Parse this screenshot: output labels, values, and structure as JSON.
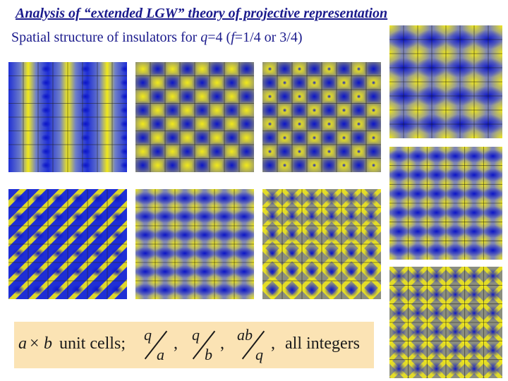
{
  "slide": {
    "title": "Analysis of “extended LGW” theory of projective representation",
    "subtitle": {
      "prefix": "Spatial structure of insulators for ",
      "q_symbol": "q",
      "q_value": "=4 (",
      "f_symbol": "f",
      "f_value": "=1/4 or 3/4)"
    }
  },
  "colors": {
    "title": "#1a1a8c",
    "pattern_low": "#1f2fd6",
    "pattern_high": "#f2ea1a",
    "grid": "#222222",
    "formula_background": "#fbe3b4"
  },
  "panels": [
    {
      "id": "stripes",
      "pattern": "vertical-stripes"
    },
    {
      "id": "checker-fine",
      "pattern": "checkerboard-fine"
    },
    {
      "id": "checker-dots",
      "pattern": "checkerboard-dots"
    },
    {
      "id": "diagonal",
      "pattern": "diagonal-stripes"
    },
    {
      "id": "plaquette",
      "pattern": "plaquette"
    },
    {
      "id": "diagonal-mesh",
      "pattern": "diagonal-mesh"
    },
    {
      "id": "right-top",
      "pattern": "large-plaquette"
    },
    {
      "id": "right-middle",
      "pattern": "plaquette-b"
    },
    {
      "id": "right-bottom",
      "pattern": "diagonal-mesh-b"
    }
  ],
  "formula": {
    "a": "a",
    "times": "×",
    "b": "b",
    "unit_cells": "unit cells;",
    "frac1_top": "q",
    "frac1_bottom": "a",
    "comma1": ",",
    "frac2_top": "q",
    "frac2_bottom": "b",
    "comma2": ",",
    "frac3_top": "ab",
    "frac3_bottom": "q",
    "comma3": ",",
    "tail": "all integers"
  }
}
